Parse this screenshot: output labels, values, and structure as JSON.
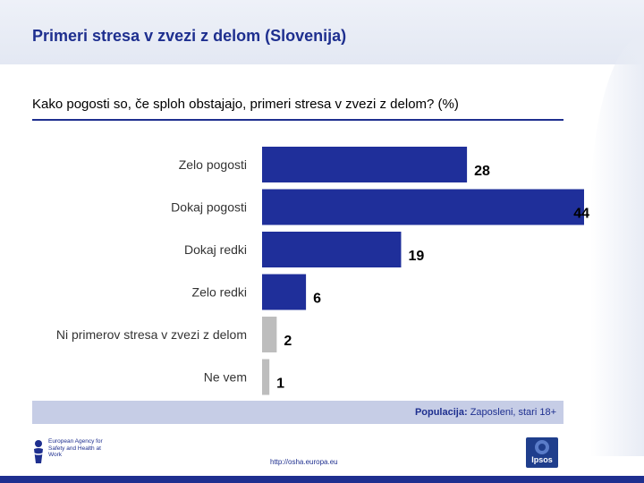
{
  "header": {
    "title": "Primeri stresa v zvezi z delom (Slovenija)"
  },
  "question": "Kako pogosti so, če sploh obstajajo, primeri stresa v zvezi z delom?  (%)",
  "chart_data": {
    "type": "bar",
    "orientation": "horizontal",
    "categories": [
      "Zelo pogosti",
      "Dokaj pogosti",
      "Dokaj redki",
      "Zelo redki",
      "Ni primerov stresa v zvezi z delom",
      "Ne vem"
    ],
    "values": [
      28,
      44,
      19,
      6,
      2,
      1
    ],
    "bar_colors": [
      "#1f2f9a",
      "#1f2f9a",
      "#1f2f9a",
      "#1f2f9a",
      "#bdbdbd",
      "#bdbdbd"
    ],
    "xlim": [
      0,
      44
    ],
    "title": "",
    "xlabel": "",
    "ylabel": ""
  },
  "footer": {
    "population_label": "Populacija:",
    "population_value": "Zaposleni, stari 18+",
    "agency_name": "European Agency for Safety and Health at Work",
    "url": "http://osha.europa.eu",
    "ipsos_label": "Ipsos"
  },
  "colors": {
    "accent": "#1e2f8f",
    "bar_primary": "#1f2f9a",
    "bar_secondary": "#bdbdbd"
  }
}
